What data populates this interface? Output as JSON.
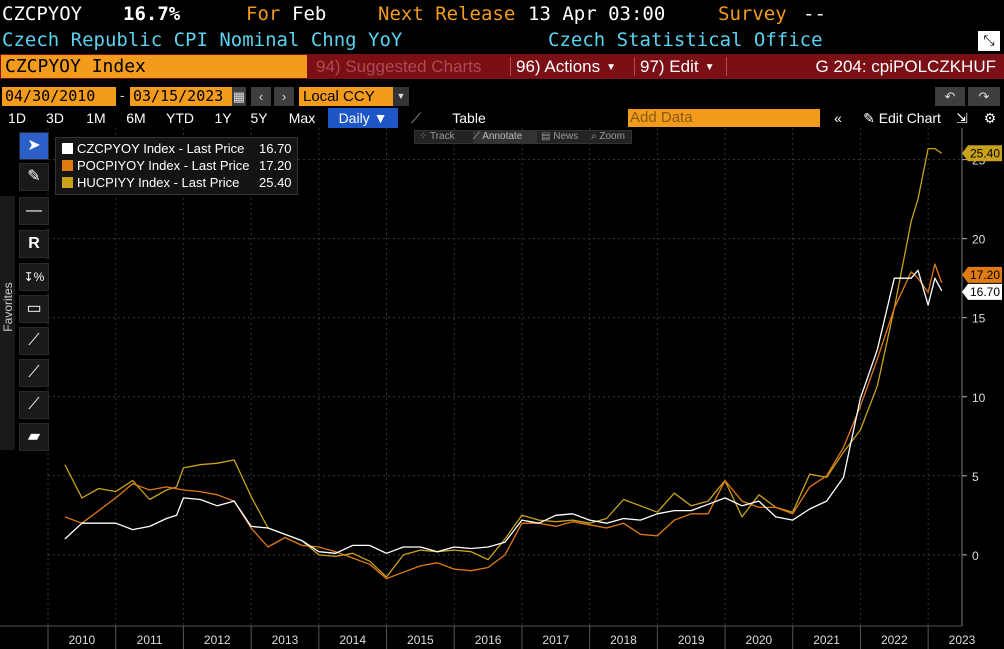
{
  "header": {
    "ticker": "CZCPYOY",
    "price": "16.7%",
    "for_label": "For",
    "for_value": "Feb",
    "next_label": "Next Release",
    "next_value": "13 Apr 03:00",
    "survey_label": "Survey",
    "survey_value": "--",
    "description": "Czech Republic CPI Nominal Chng YoY",
    "source": "Czech Statistical Office"
  },
  "toolbar": {
    "security": "CZCPYOY Index",
    "suggested": "94) Suggested Charts",
    "actions": "96) Actions",
    "edit": "97) Edit",
    "chart_title": "G 204: cpiPOLCZKHUF"
  },
  "dates": {
    "start": "04/30/2010",
    "sep": "-",
    "end": "03/15/2023",
    "currency": "Local CCY"
  },
  "tabs": [
    "1D",
    "3D",
    "1M",
    "6M",
    "YTD",
    "1Y",
    "5Y",
    "Max"
  ],
  "period": "Daily ▼",
  "table_label": "Table",
  "add_data_placeholder": "Add Data",
  "edit_chart": "Edit Chart",
  "favorites_label": "Favorites",
  "modes": [
    "Track",
    "Annotate",
    "News",
    "Zoom"
  ],
  "colors": {
    "amber": "#f29b1d",
    "cyan": "#5ad2f0",
    "red_bar": "#7a0f16",
    "series_cz": "#ffffff",
    "series_pl": "#e07a12",
    "series_hu": "#c8a21a"
  },
  "chart_data": {
    "type": "line",
    "x_labels": [
      "2010",
      "2011",
      "2012",
      "2013",
      "2014",
      "2015",
      "2016",
      "2017",
      "2018",
      "2019",
      "2020",
      "2021",
      "2022",
      "2023"
    ],
    "y_ticks": [
      0,
      5,
      10,
      15,
      20,
      25
    ],
    "ylim": [
      -4.5,
      27
    ],
    "legend_position": "top-left",
    "series": [
      {
        "name": "CZCPYOY Index - Last Price",
        "last": "16.70",
        "color": "#ffffff",
        "points": [
          [
            2010.25,
            1.0
          ],
          [
            2010.5,
            2.0
          ],
          [
            2010.75,
            2.0
          ],
          [
            2011.0,
            2.0
          ],
          [
            2011.25,
            1.6
          ],
          [
            2011.5,
            1.8
          ],
          [
            2011.75,
            2.3
          ],
          [
            2011.9,
            2.5
          ],
          [
            2012.0,
            3.6
          ],
          [
            2012.25,
            3.5
          ],
          [
            2012.5,
            3.1
          ],
          [
            2012.75,
            3.4
          ],
          [
            2013.0,
            1.8
          ],
          [
            2013.25,
            1.7
          ],
          [
            2013.5,
            1.3
          ],
          [
            2013.75,
            0.9
          ],
          [
            2014.0,
            0.2
          ],
          [
            2014.25,
            0.1
          ],
          [
            2014.5,
            0.6
          ],
          [
            2014.75,
            0.6
          ],
          [
            2015.0,
            0.1
          ],
          [
            2015.25,
            0.5
          ],
          [
            2015.5,
            0.5
          ],
          [
            2015.75,
            0.2
          ],
          [
            2016.0,
            0.5
          ],
          [
            2016.25,
            0.4
          ],
          [
            2016.5,
            0.5
          ],
          [
            2016.75,
            0.8
          ],
          [
            2017.0,
            2.2
          ],
          [
            2017.25,
            2.0
          ],
          [
            2017.5,
            2.5
          ],
          [
            2017.75,
            2.6
          ],
          [
            2018.0,
            2.2
          ],
          [
            2018.25,
            2.0
          ],
          [
            2018.5,
            2.3
          ],
          [
            2018.75,
            2.2
          ],
          [
            2019.0,
            2.6
          ],
          [
            2019.25,
            2.8
          ],
          [
            2019.5,
            2.8
          ],
          [
            2019.75,
            3.2
          ],
          [
            2020.0,
            3.6
          ],
          [
            2020.25,
            3.1
          ],
          [
            2020.5,
            3.4
          ],
          [
            2020.75,
            2.4
          ],
          [
            2021.0,
            2.2
          ],
          [
            2021.25,
            2.9
          ],
          [
            2021.5,
            3.4
          ],
          [
            2021.75,
            4.9
          ],
          [
            2022.0,
            9.9
          ],
          [
            2022.25,
            13.0
          ],
          [
            2022.5,
            17.5
          ],
          [
            2022.75,
            17.5
          ],
          [
            2022.85,
            18.0
          ],
          [
            2023.0,
            15.8
          ],
          [
            2023.1,
            17.5
          ],
          [
            2023.2,
            16.7
          ]
        ]
      },
      {
        "name": "POCPIYOY Index - Last Price",
        "last": "17.20",
        "color": "#e07a12",
        "points": [
          [
            2010.25,
            2.4
          ],
          [
            2010.5,
            2.0
          ],
          [
            2010.75,
            2.8
          ],
          [
            2011.0,
            3.6
          ],
          [
            2011.25,
            4.5
          ],
          [
            2011.5,
            4.1
          ],
          [
            2011.75,
            4.3
          ],
          [
            2012.0,
            4.1
          ],
          [
            2012.25,
            4.0
          ],
          [
            2012.5,
            3.8
          ],
          [
            2012.75,
            3.4
          ],
          [
            2013.0,
            1.7
          ],
          [
            2013.25,
            0.5
          ],
          [
            2013.5,
            1.1
          ],
          [
            2013.75,
            0.6
          ],
          [
            2014.0,
            0.5
          ],
          [
            2014.25,
            0.2
          ],
          [
            2014.5,
            -0.2
          ],
          [
            2014.75,
            -0.6
          ],
          [
            2015.0,
            -1.5
          ],
          [
            2015.25,
            -1.1
          ],
          [
            2015.5,
            -0.7
          ],
          [
            2015.75,
            -0.5
          ],
          [
            2016.0,
            -0.9
          ],
          [
            2016.25,
            -1.0
          ],
          [
            2016.5,
            -0.8
          ],
          [
            2016.75,
            0.0
          ],
          [
            2017.0,
            2.0
          ],
          [
            2017.25,
            2.0
          ],
          [
            2017.5,
            1.8
          ],
          [
            2017.75,
            2.1
          ],
          [
            2018.0,
            1.9
          ],
          [
            2018.25,
            1.7
          ],
          [
            2018.5,
            2.0
          ],
          [
            2018.75,
            1.3
          ],
          [
            2019.0,
            1.2
          ],
          [
            2019.25,
            2.2
          ],
          [
            2019.5,
            2.6
          ],
          [
            2019.75,
            2.6
          ],
          [
            2020.0,
            4.7
          ],
          [
            2020.25,
            3.4
          ],
          [
            2020.5,
            3.0
          ],
          [
            2020.75,
            3.0
          ],
          [
            2021.0,
            2.6
          ],
          [
            2021.25,
            4.3
          ],
          [
            2021.5,
            5.0
          ],
          [
            2021.75,
            6.8
          ],
          [
            2022.0,
            9.4
          ],
          [
            2022.25,
            12.4
          ],
          [
            2022.5,
            15.6
          ],
          [
            2022.75,
            17.9
          ],
          [
            2022.85,
            17.5
          ],
          [
            2023.0,
            16.6
          ],
          [
            2023.1,
            18.4
          ],
          [
            2023.2,
            17.2
          ]
        ]
      },
      {
        "name": "HUCPIYY Index - Last Price",
        "last": "25.40",
        "color": "#c8a21a",
        "points": [
          [
            2010.25,
            5.7
          ],
          [
            2010.5,
            3.6
          ],
          [
            2010.75,
            4.2
          ],
          [
            2011.0,
            4.0
          ],
          [
            2011.25,
            4.7
          ],
          [
            2011.5,
            3.5
          ],
          [
            2011.75,
            4.1
          ],
          [
            2011.9,
            4.3
          ],
          [
            2012.0,
            5.5
          ],
          [
            2012.25,
            5.7
          ],
          [
            2012.5,
            5.8
          ],
          [
            2012.75,
            6.0
          ],
          [
            2013.0,
            3.7
          ],
          [
            2013.25,
            1.7
          ],
          [
            2013.5,
            1.3
          ],
          [
            2013.75,
            0.9
          ],
          [
            2014.0,
            0.0
          ],
          [
            2014.25,
            -0.1
          ],
          [
            2014.5,
            0.1
          ],
          [
            2014.75,
            -0.4
          ],
          [
            2015.0,
            -1.4
          ],
          [
            2015.25,
            0.0
          ],
          [
            2015.5,
            0.3
          ],
          [
            2015.75,
            0.2
          ],
          [
            2016.0,
            0.3
          ],
          [
            2016.25,
            0.2
          ],
          [
            2016.5,
            -0.3
          ],
          [
            2016.75,
            1.0
          ],
          [
            2017.0,
            2.5
          ],
          [
            2017.25,
            2.2
          ],
          [
            2017.5,
            2.1
          ],
          [
            2017.75,
            2.2
          ],
          [
            2018.0,
            2.0
          ],
          [
            2018.25,
            2.3
          ],
          [
            2018.5,
            3.5
          ],
          [
            2018.75,
            3.1
          ],
          [
            2019.0,
            2.7
          ],
          [
            2019.25,
            3.9
          ],
          [
            2019.5,
            3.1
          ],
          [
            2019.75,
            3.4
          ],
          [
            2020.0,
            4.7
          ],
          [
            2020.25,
            2.4
          ],
          [
            2020.5,
            3.8
          ],
          [
            2020.75,
            3.0
          ],
          [
            2021.0,
            2.7
          ],
          [
            2021.25,
            5.1
          ],
          [
            2021.5,
            4.9
          ],
          [
            2021.75,
            6.5
          ],
          [
            2022.0,
            7.9
          ],
          [
            2022.25,
            10.7
          ],
          [
            2022.5,
            15.6
          ],
          [
            2022.75,
            21.1
          ],
          [
            2022.85,
            22.5
          ],
          [
            2023.0,
            25.7
          ],
          [
            2023.1,
            25.7
          ],
          [
            2023.2,
            25.4
          ]
        ]
      }
    ]
  }
}
